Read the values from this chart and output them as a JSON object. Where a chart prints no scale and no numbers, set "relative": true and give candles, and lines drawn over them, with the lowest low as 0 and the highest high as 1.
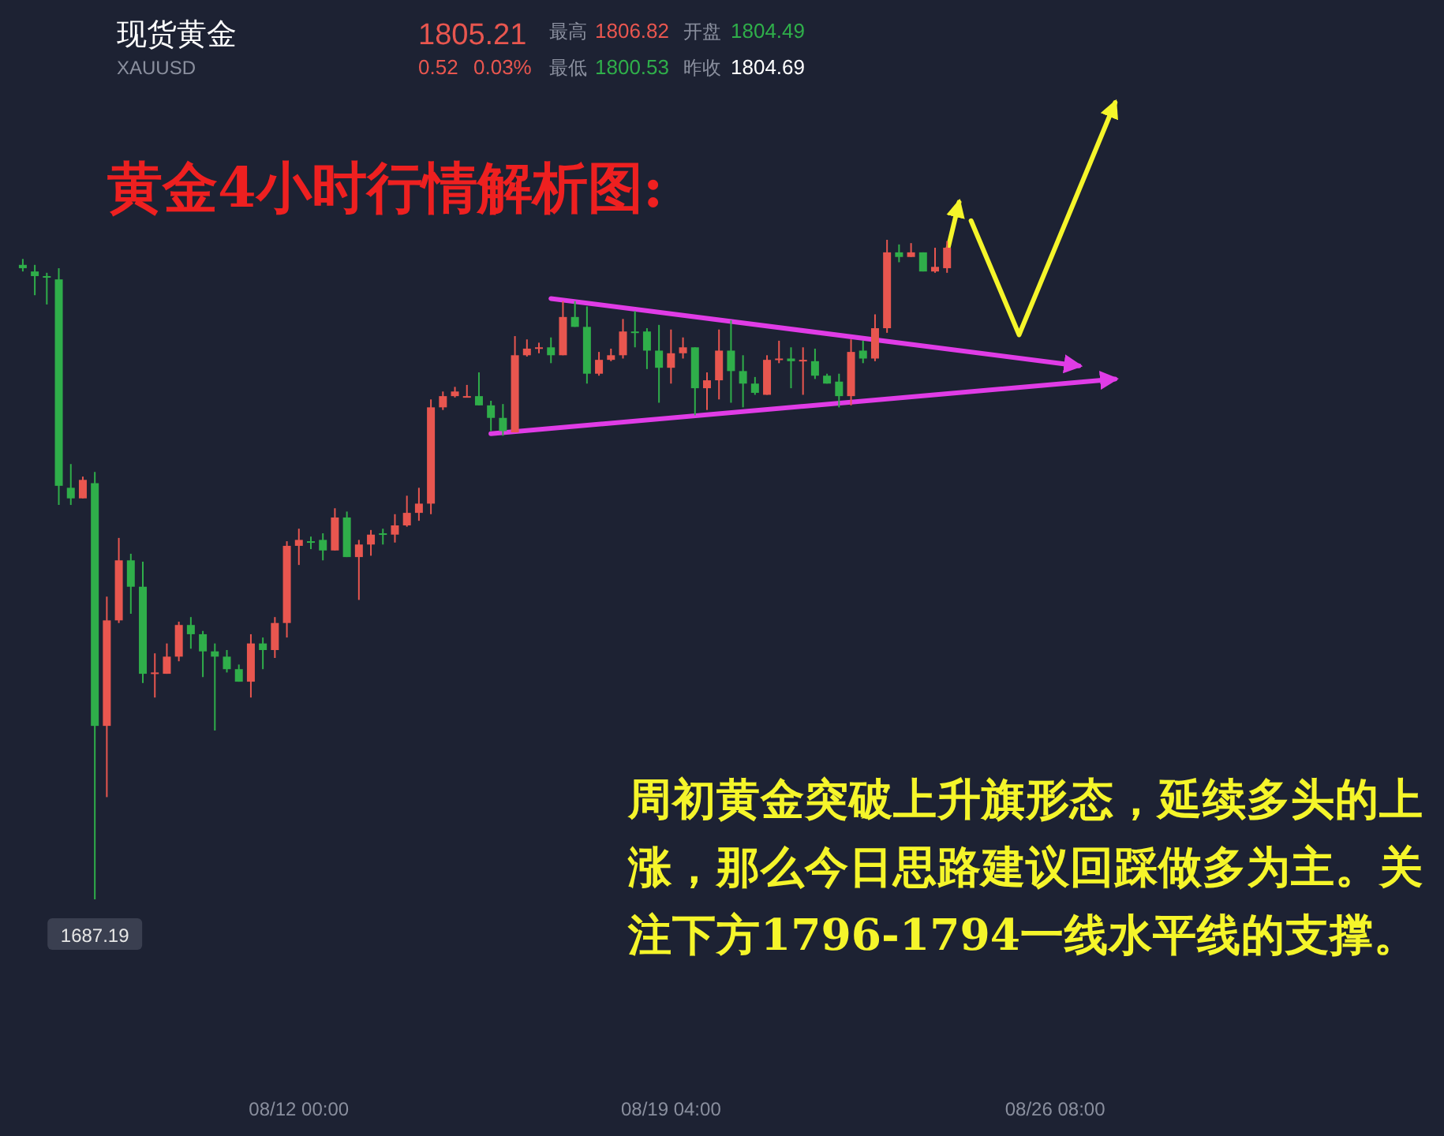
{
  "chart_data": {
    "type": "candlestick",
    "title": "现货黄金",
    "subtitle": "XAUUSD",
    "relative": true,
    "categories": [
      null,
      null,
      null,
      null,
      null,
      null,
      null,
      null,
      null,
      null,
      null,
      null,
      null,
      null,
      null,
      null,
      null,
      null,
      null,
      null,
      null,
      null,
      null,
      "08/12 00:00",
      null,
      null,
      null,
      null,
      null,
      null,
      null,
      null,
      null,
      null,
      null,
      null,
      null,
      null,
      null,
      null,
      null,
      null,
      null,
      null,
      null,
      null,
      null,
      null,
      null,
      null,
      null,
      null,
      null,
      null,
      "08/19 04:00",
      null,
      null,
      null,
      null,
      null,
      null,
      null,
      null,
      null,
      null,
      null,
      null,
      null,
      null,
      null,
      null,
      null,
      null,
      null,
      null,
      null,
      null,
      null,
      null,
      null,
      null,
      null,
      null,
      null,
      null,
      null,
      "08/26 08:00",
      null,
      null,
      null,
      null,
      null,
      null,
      null,
      null,
      null,
      null,
      null,
      null,
      null,
      null,
      null,
      null,
      null,
      null,
      null,
      null,
      null,
      null,
      null,
      null,
      null,
      null,
      null,
      null,
      null,
      null,
      null,
      null,
      null
    ],
    "ohlc": [
      [
        0.962,
        0.971,
        0.952,
        0.957
      ],
      [
        0.952,
        0.962,
        0.916,
        0.945
      ],
      [
        0.945,
        0.95,
        0.902,
        0.943
      ],
      [
        0.94,
        0.957,
        0.598,
        0.627
      ],
      [
        0.624,
        0.66,
        0.598,
        0.608
      ],
      [
        0.608,
        0.641,
        0.608,
        0.636
      ],
      [
        0.631,
        0.648,
        0,
        0.263
      ],
      [
        0.263,
        0.459,
        0.155,
        0.423
      ],
      [
        0.423,
        0.548,
        0.419,
        0.514
      ],
      [
        0.514,
        0.524,
        0.433,
        0.474
      ],
      [
        0.474,
        0.512,
        0.328,
        0.342
      ],
      [
        0.342,
        0.373,
        0.306,
        0.344
      ],
      [
        0.342,
        0.388,
        0.342,
        0.368
      ],
      [
        0.368,
        0.421,
        0.361,
        0.416
      ],
      [
        0.416,
        0.428,
        0.38,
        0.402
      ],
      [
        0.402,
        0.407,
        0.337,
        0.376
      ],
      [
        0.376,
        0.388,
        0.256,
        0.368
      ],
      [
        0.368,
        0.378,
        0.344,
        0.349
      ],
      [
        0.349,
        0.356,
        0.33,
        0.33
      ],
      [
        0.33,
        0.402,
        0.306,
        0.388
      ],
      [
        0.388,
        0.397,
        0.349,
        0.378
      ],
      [
        0.378,
        0.428,
        0.366,
        0.419
      ],
      [
        0.419,
        0.543,
        0.397,
        0.536
      ],
      [
        0.536,
        0.562,
        0.507,
        0.545
      ],
      [
        0.543,
        0.55,
        0.531,
        0.541
      ],
      [
        0.545,
        0.555,
        0.514,
        0.529
      ],
      [
        0.529,
        0.593,
        0.529,
        0.579
      ],
      [
        0.579,
        0.588,
        0.519,
        0.519
      ],
      [
        0.519,
        0.545,
        0.454,
        0.538
      ],
      [
        0.538,
        0.56,
        0.521,
        0.553
      ],
      [
        0.555,
        0.562,
        0.538,
        0.553
      ],
      [
        0.553,
        0.584,
        0.541,
        0.567
      ],
      [
        0.567,
        0.612,
        0.565,
        0.586
      ],
      [
        0.586,
        0.624,
        0.574,
        0.6
      ],
      [
        0.6,
        0.758,
        0.584,
        0.746
      ],
      [
        0.746,
        0.77,
        0.742,
        0.763
      ],
      [
        0.763,
        0.777,
        0.761,
        0.77
      ],
      [
        0.761,
        0.78,
        0.761,
        0.763
      ],
      [
        0.763,
        0.799,
        0.749,
        0.749
      ],
      [
        0.749,
        0.756,
        0.71,
        0.73
      ],
      [
        0.73,
        0.751,
        0.703,
        0.71
      ],
      [
        0.708,
        0.854,
        0.708,
        0.825
      ],
      [
        0.825,
        0.849,
        0.823,
        0.835
      ],
      [
        0.835,
        0.844,
        0.828,
        0.837
      ],
      [
        0.837,
        0.852,
        0.813,
        0.825
      ],
      [
        0.825,
        0.907,
        0.825,
        0.883
      ],
      [
        0.883,
        0.907,
        0.868,
        0.868
      ],
      [
        0.868,
        0.899,
        0.782,
        0.797
      ],
      [
        0.797,
        0.83,
        0.794,
        0.818
      ],
      [
        0.818,
        0.835,
        0.816,
        0.825
      ],
      [
        0.825,
        0.88,
        0.82,
        0.861
      ],
      [
        0.861,
        0.892,
        0.837,
        0.859
      ],
      [
        0.861,
        0.866,
        0.804,
        0.832
      ],
      [
        0.832,
        0.871,
        0.753,
        0.806
      ],
      [
        0.806,
        0.864,
        0.782,
        0.828
      ],
      [
        0.828,
        0.852,
        0.82,
        0.837
      ],
      [
        0.837,
        0.837,
        0.734,
        0.775
      ],
      [
        0.775,
        0.799,
        0.742,
        0.787
      ],
      [
        0.787,
        0.864,
        0.758,
        0.832
      ],
      [
        0.832,
        0.878,
        0.753,
        0.801
      ],
      [
        0.801,
        0.825,
        0.746,
        0.782
      ],
      [
        0.782,
        0.792,
        0.765,
        0.768
      ],
      [
        0.765,
        0.825,
        0.765,
        0.818
      ],
      [
        0.818,
        0.847,
        0.813,
        0.82
      ],
      [
        0.82,
        0.837,
        0.775,
        0.816
      ],
      [
        0.816,
        0.837,
        0.765,
        0.818
      ],
      [
        0.816,
        0.835,
        0.789,
        0.794
      ],
      [
        0.794,
        0.797,
        0.782,
        0.782
      ],
      [
        0.785,
        0.797,
        0.746,
        0.763
      ],
      [
        0.763,
        0.849,
        0.749,
        0.83
      ],
      [
        0.832,
        0.847,
        0.813,
        0.82
      ],
      [
        0.82,
        0.887,
        0.816,
        0.866
      ],
      [
        0.866,
        1,
        0.859,
        0.981
      ],
      [
        0.981,
        0.993,
        0.966,
        0.974
      ],
      [
        0.974,
        0.995,
        0.974,
        0.981
      ],
      [
        0.981,
        0.981,
        0.952,
        0.952
      ],
      [
        0.952,
        0.988,
        0.95,
        0.959
      ],
      [
        0.957,
        0.998,
        0.95,
        0.988
      ],
      null,
      null,
      null,
      null,
      null,
      null,
      null,
      null,
      null,
      null,
      null,
      null,
      null,
      null,
      null,
      null,
      null,
      null,
      null,
      null,
      null,
      null,
      null,
      null,
      null,
      null,
      null,
      null,
      null,
      null,
      null,
      null,
      null,
      null,
      null,
      null,
      null,
      null,
      null,
      null,
      null,
      null
    ],
    "series": [
      {
        "type": "line",
        "color": "#e03ce6",
        "values": [
          null,
          null,
          null,
          null,
          null,
          null,
          null,
          null,
          null,
          null,
          null,
          null,
          null,
          null,
          null,
          null,
          null,
          null,
          null,
          null,
          null,
          null,
          null,
          null,
          null,
          null,
          null,
          null,
          null,
          null,
          null,
          null,
          null,
          null,
          null,
          null,
          null,
          null,
          null,
          null,
          null,
          null,
          null,
          null,
          0.911,
          null,
          null,
          null,
          null,
          null,
          null,
          null,
          null,
          null,
          null,
          null,
          null,
          null,
          null,
          null,
          null,
          null,
          null,
          null,
          null,
          null,
          null,
          null,
          null,
          null,
          null,
          null,
          null,
          null,
          null,
          null,
          null,
          null,
          null,
          null,
          null,
          null,
          null,
          null,
          null,
          null,
          null,
          null,
          0.809,
          null,
          null,
          null,
          null,
          null,
          null,
          null,
          null,
          null,
          null,
          null,
          null,
          null,
          null,
          null,
          null,
          null,
          null,
          null,
          null,
          null,
          null,
          null,
          null,
          null,
          null,
          null,
          null,
          null,
          null,
          null
        ]
      },
      {
        "type": "line",
        "color": "#e03ce6",
        "values": [
          null,
          null,
          null,
          null,
          null,
          null,
          null,
          null,
          null,
          null,
          null,
          null,
          null,
          null,
          null,
          null,
          null,
          null,
          null,
          null,
          null,
          null,
          null,
          null,
          null,
          null,
          null,
          null,
          null,
          null,
          null,
          null,
          null,
          null,
          null,
          null,
          null,
          null,
          null,
          0.706,
          null,
          null,
          null,
          null,
          null,
          null,
          null,
          null,
          null,
          null,
          null,
          null,
          null,
          null,
          null,
          null,
          null,
          null,
          null,
          null,
          null,
          null,
          null,
          null,
          null,
          null,
          null,
          null,
          null,
          null,
          null,
          null,
          null,
          null,
          null,
          null,
          null,
          null,
          null,
          null,
          null,
          null,
          null,
          null,
          null,
          null,
          null,
          null,
          null,
          null,
          null,
          0.789,
          null,
          null,
          null,
          null,
          null,
          null,
          null,
          null,
          null,
          null,
          null,
          null,
          null,
          null,
          null,
          null,
          null,
          null,
          null,
          null,
          null,
          null,
          null,
          null,
          null,
          null,
          null,
          null
        ]
      },
      {
        "type": "line",
        "color": "#f5f52a",
        "values": [
          null,
          null,
          null,
          null,
          null,
          null,
          null,
          null,
          null,
          null,
          null,
          null,
          null,
          null,
          null,
          null,
          null,
          null,
          null,
          null,
          null,
          null,
          null,
          null,
          null,
          null,
          null,
          null,
          null,
          null,
          null,
          null,
          null,
          null,
          null,
          null,
          null,
          null,
          null,
          null,
          null,
          null,
          null,
          null,
          null,
          null,
          null,
          null,
          null,
          null,
          null,
          null,
          null,
          null,
          null,
          null,
          null,
          null,
          null,
          null,
          null,
          null,
          null,
          null,
          null,
          null,
          null,
          null,
          null,
          null,
          null,
          null,
          null,
          null,
          null,
          null,
          null,
          0.981,
          1.057,
          null,
          null,
          null,
          null,
          null,
          null,
          null,
          null,
          null,
          null,
          null,
          null,
          null,
          null,
          null,
          null,
          null,
          null,
          null,
          null,
          null,
          null,
          null,
          null,
          null,
          null,
          null,
          null,
          null,
          null,
          null,
          null,
          null,
          null,
          null,
          null,
          null,
          null,
          null,
          null,
          null
        ]
      },
      {
        "type": "line",
        "color": "#f5f52a",
        "values": [
          null,
          null,
          null,
          null,
          null,
          null,
          null,
          null,
          null,
          null,
          null,
          null,
          null,
          null,
          null,
          null,
          null,
          null,
          null,
          null,
          null,
          null,
          null,
          null,
          null,
          null,
          null,
          null,
          null,
          null,
          null,
          null,
          null,
          null,
          null,
          null,
          null,
          null,
          null,
          null,
          null,
          null,
          null,
          null,
          null,
          null,
          null,
          null,
          null,
          null,
          null,
          null,
          null,
          null,
          null,
          null,
          null,
          null,
          null,
          null,
          null,
          null,
          null,
          null,
          null,
          null,
          null,
          null,
          null,
          null,
          null,
          null,
          null,
          null,
          null,
          null,
          null,
          null,
          null,
          1.029,
          null,
          null,
          null,
          0.856,
          null,
          null,
          null,
          null,
          null,
          null,
          null,
          1.208,
          null,
          null,
          null,
          null,
          null,
          null,
          null,
          null,
          null,
          null,
          null,
          null,
          null,
          null,
          null,
          null,
          null,
          null,
          null,
          null,
          null,
          null,
          null,
          null,
          null,
          null,
          null,
          null
        ]
      }
    ],
    "annotations": [
      {
        "text": "1687.19",
        "y": 0
      },
      "黄金4小时行情解析图:",
      "周初黄金突破上升旗形态，延续多头的上涨，那么今日思路建议回踩做多为主。关注下方1796-1794一线水平线的支撑。",
      "1805.21",
      "0.52",
      "0.03%",
      "最高",
      "1806.82",
      "最低",
      "1800.53",
      "开盘",
      "1804.49",
      "昨收",
      "1804.69"
    ]
  }
}
